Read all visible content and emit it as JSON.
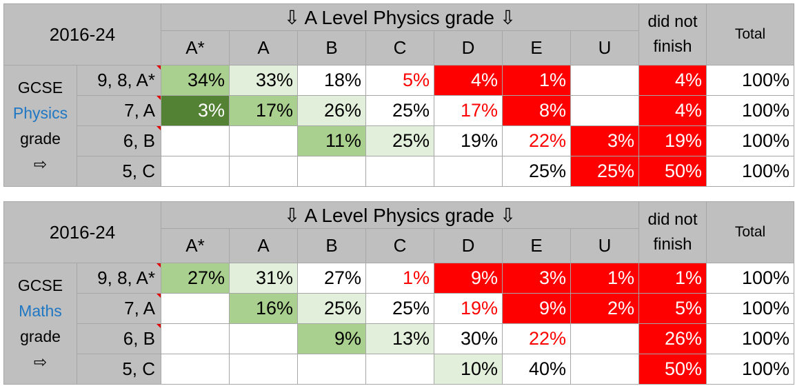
{
  "tables": [
    {
      "year": "2016-24",
      "title": "⇩ A Level Physics grade ⇩",
      "columns": [
        "A*",
        "A",
        "B",
        "C",
        "D",
        "E",
        "U"
      ],
      "dnf_line1": "did not",
      "dnf_line2": "finish",
      "total_header": "Total",
      "side_line1": "GCSE",
      "side_subject": "Physics",
      "side_line3": "grade",
      "side_arrow": "⇨",
      "rows": [
        {
          "label": "9, 8, A*",
          "cells": [
            "34%",
            "33%",
            "18%",
            "5%",
            "4%",
            "1%",
            "",
            "4%"
          ],
          "total": "100%"
        },
        {
          "label": "7, A",
          "cells": [
            "3%",
            "17%",
            "26%",
            "25%",
            "17%",
            "8%",
            "",
            "4%"
          ],
          "total": "100%"
        },
        {
          "label": "6, B",
          "cells": [
            "",
            "",
            "11%",
            "25%",
            "19%",
            "22%",
            "3%",
            "19%"
          ],
          "total": "100%"
        },
        {
          "label": "5, C",
          "cells": [
            "",
            "",
            "",
            "",
            "",
            "25%",
            "25%",
            "50%"
          ],
          "total": "100%"
        }
      ]
    },
    {
      "year": "2016-24",
      "title": "⇩ A Level Physics grade ⇩",
      "columns": [
        "A*",
        "A",
        "B",
        "C",
        "D",
        "E",
        "U"
      ],
      "dnf_line1": "did not",
      "dnf_line2": "finish",
      "total_header": "Total",
      "side_line1": "GCSE",
      "side_subject": "Maths",
      "side_line3": "grade",
      "side_arrow": "⇨",
      "rows": [
        {
          "label": "9, 8, A*",
          "cells": [
            "27%",
            "31%",
            "27%",
            "1%",
            "9%",
            "3%",
            "1%",
            "1%"
          ],
          "total": "100%"
        },
        {
          "label": "7, A",
          "cells": [
            "",
            "16%",
            "25%",
            "25%",
            "19%",
            "9%",
            "2%",
            "5%"
          ],
          "total": "100%"
        },
        {
          "label": "6, B",
          "cells": [
            "",
            "",
            "9%",
            "13%",
            "30%",
            "22%",
            "",
            "26%"
          ],
          "total": "100%"
        },
        {
          "label": "5, C",
          "cells": [
            "",
            "",
            "",
            "",
            "10%",
            "40%",
            "",
            "50%"
          ],
          "total": "100%"
        }
      ]
    }
  ],
  "colors": {
    "header_gray": "#bfbfbf",
    "dark_green": "#548235",
    "mid_green": "#a9d08e",
    "light_green": "#e2efda",
    "red": "#ff0000",
    "subject_blue": "#1f77c4"
  }
}
